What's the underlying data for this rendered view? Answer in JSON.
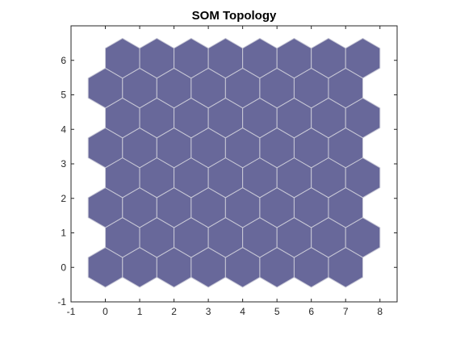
{
  "chart_data": {
    "type": "scatter",
    "title": "SOM Topology",
    "xlabel": "",
    "ylabel": "",
    "xlim": [
      -1,
      8.5
    ],
    "ylim": [
      -1,
      7
    ],
    "x_ticks": [
      -1,
      0,
      1,
      2,
      3,
      4,
      5,
      6,
      7,
      8
    ],
    "y_ticks": [
      -1,
      0,
      1,
      2,
      3,
      4,
      5,
      6
    ],
    "grid": false,
    "topology": {
      "shape": "hexagonal",
      "columns": 8,
      "rows": 8,
      "row_spacing": 0.8660254,
      "odd_row_offset": 0.5
    },
    "colors": {
      "neuron_fill": "#68689a",
      "neuron_edge": "#c8c8d6",
      "axes": "#262626",
      "background": "#ffffff"
    }
  }
}
